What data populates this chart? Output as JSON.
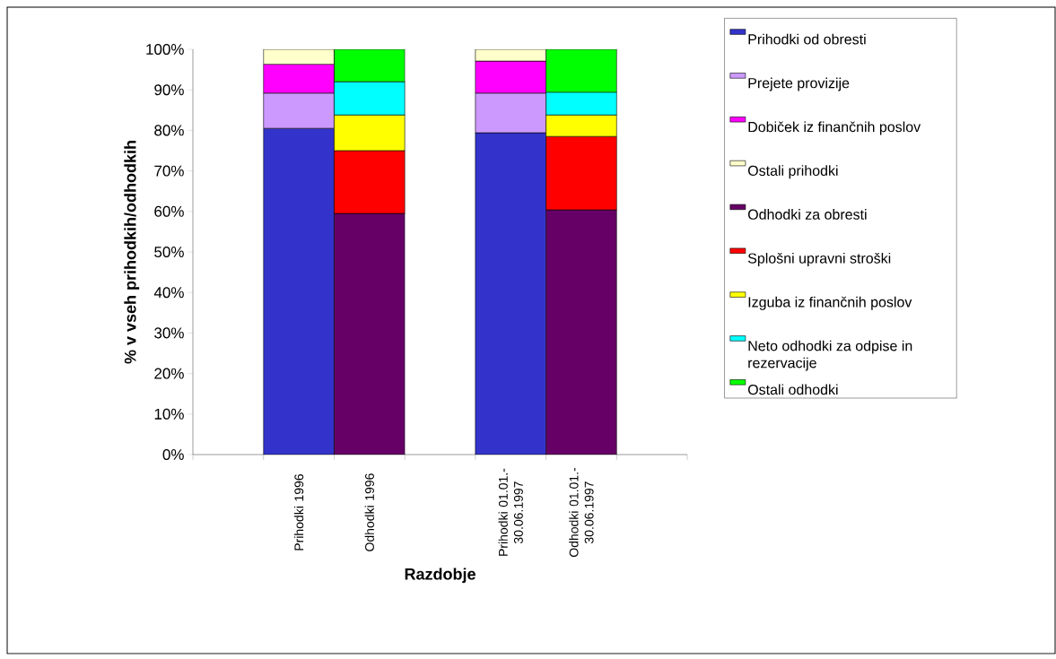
{
  "chart_data": {
    "type": "bar",
    "stacked": true,
    "categories": [
      null,
      "Prihodki 1996",
      "Odhodki 1996",
      null,
      "Prihodki 01.01.-30.06.1997",
      "Odhodki 01.01.-30.06.1997",
      null
    ],
    "series": [
      {
        "name": "Prihodki od obresti",
        "color": "#3333cc",
        "values": [
          null,
          80.5,
          null,
          null,
          79.4,
          null,
          null
        ]
      },
      {
        "name": "Prejete provizije",
        "color": "#cc99ff",
        "values": [
          null,
          8.7,
          null,
          null,
          9.8,
          null,
          null
        ]
      },
      {
        "name": "Dobiček iz finančnih poslov",
        "color": "#ff00ff",
        "values": [
          null,
          7.1,
          null,
          null,
          7.9,
          null,
          null
        ]
      },
      {
        "name": "Ostali prihodki",
        "color": "#ffffcc",
        "values": [
          null,
          3.7,
          null,
          null,
          2.9,
          null,
          null
        ]
      },
      {
        "name": "Odhodki za obresti",
        "color": "#660066",
        "values": [
          null,
          null,
          59.5,
          null,
          null,
          60.4,
          null
        ]
      },
      {
        "name": "Splošni upravni stroški",
        "color": "#ff0000",
        "values": [
          null,
          null,
          15.5,
          null,
          null,
          18.1,
          null
        ]
      },
      {
        "name": "Izguba iz finančnih poslov",
        "color": "#ffff00",
        "values": [
          null,
          null,
          8.8,
          null,
          null,
          5.3,
          null
        ]
      },
      {
        "name": "Neto odhodki za odpise in rezervacije",
        "color": "#00ffff",
        "values": [
          null,
          null,
          8.2,
          null,
          null,
          5.6,
          null
        ]
      },
      {
        "name": "Ostali odhodki",
        "color": "#00ff00",
        "values": [
          null,
          null,
          8.0,
          null,
          null,
          10.6,
          null
        ]
      }
    ],
    "xlabel": "Razdobje",
    "ylabel": "% v vseh prihodkih/odhodkih",
    "ylim": [
      0,
      100
    ],
    "yticks": [
      {
        "value": 0,
        "label": "0%"
      },
      {
        "value": 10,
        "label": "10%"
      },
      {
        "value": 20,
        "label": "20%"
      },
      {
        "value": 30,
        "label": "30%"
      },
      {
        "value": 40,
        "label": "40%"
      },
      {
        "value": 50,
        "label": "50%"
      },
      {
        "value": 60,
        "label": "60%"
      },
      {
        "value": 70,
        "label": "70%"
      },
      {
        "value": 80,
        "label": "80%"
      },
      {
        "value": 90,
        "label": "90%"
      },
      {
        "value": 100,
        "label": "100%"
      }
    ],
    "legend": "right"
  }
}
